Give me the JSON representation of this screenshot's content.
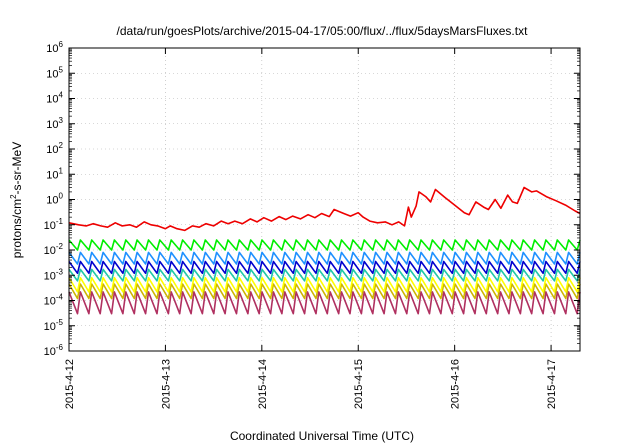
{
  "chart_data": {
    "type": "line",
    "title": "/data/run/goesPlots/archive/2015-04-17/05:00/flux/../flux/5daysMarsFluxes.txt",
    "xlabel": "Coordinated Universal Time (UTC)",
    "ylabel_parts": {
      "pre": "protons/cm",
      "sup": "2",
      "post": "-s-sr-MeV"
    },
    "yscale": "log",
    "ylim": [
      1e-06,
      1000000.0
    ],
    "y_ticks": [
      {
        "base": "10",
        "exp": "-6",
        "value": 1e-06
      },
      {
        "base": "10",
        "exp": "-5",
        "value": 1e-05
      },
      {
        "base": "10",
        "exp": "-4",
        "value": 0.0001
      },
      {
        "base": "10",
        "exp": "-3",
        "value": 0.001
      },
      {
        "base": "10",
        "exp": "-2",
        "value": 0.01
      },
      {
        "base": "10",
        "exp": "-1",
        "value": 0.1
      },
      {
        "base": "10",
        "exp": "0",
        "value": 1
      },
      {
        "base": "10",
        "exp": "1",
        "value": 10
      },
      {
        "base": "10",
        "exp": "2",
        "value": 100
      },
      {
        "base": "10",
        "exp": "3",
        "value": 1000
      },
      {
        "base": "10",
        "exp": "4",
        "value": 10000
      },
      {
        "base": "10",
        "exp": "5",
        "value": 100000
      },
      {
        "base": "10",
        "exp": "6",
        "value": 1000000
      }
    ],
    "xlim_days": [
      0,
      5.3
    ],
    "x_ticks": [
      {
        "label": "2015-4-12",
        "day": 0
      },
      {
        "label": "2015-4-13",
        "day": 1
      },
      {
        "label": "2015-4-14",
        "day": 2
      },
      {
        "label": "2015-4-15",
        "day": 3
      },
      {
        "label": "2015-4-16",
        "day": 4
      },
      {
        "label": "2015-4-17",
        "day": 5
      }
    ],
    "grid": true,
    "legend": "none",
    "series": [
      {
        "color": "#ee0000",
        "points": [
          [
            0.0,
            0.12
          ],
          [
            0.1,
            0.1
          ],
          [
            0.18,
            0.09
          ],
          [
            0.25,
            0.11
          ],
          [
            0.33,
            0.09
          ],
          [
            0.4,
            0.08
          ],
          [
            0.48,
            0.12
          ],
          [
            0.55,
            0.09
          ],
          [
            0.63,
            0.1
          ],
          [
            0.7,
            0.08
          ],
          [
            0.78,
            0.13
          ],
          [
            0.85,
            0.1
          ],
          [
            0.92,
            0.09
          ],
          [
            1.0,
            0.07
          ],
          [
            1.05,
            0.09
          ],
          [
            1.12,
            0.07
          ],
          [
            1.2,
            0.06
          ],
          [
            1.28,
            0.09
          ],
          [
            1.35,
            0.08
          ],
          [
            1.42,
            0.11
          ],
          [
            1.5,
            0.09
          ],
          [
            1.58,
            0.14
          ],
          [
            1.65,
            0.11
          ],
          [
            1.72,
            0.14
          ],
          [
            1.8,
            0.11
          ],
          [
            1.88,
            0.17
          ],
          [
            1.95,
            0.13
          ],
          [
            2.02,
            0.19
          ],
          [
            2.1,
            0.14
          ],
          [
            2.18,
            0.21
          ],
          [
            2.25,
            0.16
          ],
          [
            2.32,
            0.22
          ],
          [
            2.4,
            0.17
          ],
          [
            2.48,
            0.25
          ],
          [
            2.55,
            0.19
          ],
          [
            2.62,
            0.28
          ],
          [
            2.7,
            0.21
          ],
          [
            2.75,
            0.4
          ],
          [
            2.85,
            0.28
          ],
          [
            2.92,
            0.22
          ],
          [
            3.0,
            0.3
          ],
          [
            3.05,
            0.2
          ],
          [
            3.12,
            0.14
          ],
          [
            3.2,
            0.12
          ],
          [
            3.28,
            0.13
          ],
          [
            3.35,
            0.1
          ],
          [
            3.42,
            0.13
          ],
          [
            3.48,
            0.09
          ],
          [
            3.52,
            0.5
          ],
          [
            3.55,
            0.2
          ],
          [
            3.6,
            0.55
          ],
          [
            3.63,
            2.0
          ],
          [
            3.7,
            1.3
          ],
          [
            3.75,
            0.8
          ],
          [
            3.8,
            2.5
          ],
          [
            3.9,
            1.2
          ],
          [
            4.0,
            0.6
          ],
          [
            4.1,
            0.3
          ],
          [
            4.15,
            0.25
          ],
          [
            4.22,
            0.8
          ],
          [
            4.3,
            0.5
          ],
          [
            4.35,
            0.4
          ],
          [
            4.42,
            1.0
          ],
          [
            4.48,
            0.45
          ],
          [
            4.55,
            1.5
          ],
          [
            4.6,
            0.8
          ],
          [
            4.65,
            0.7
          ],
          [
            4.72,
            3.0
          ],
          [
            4.8,
            2.0
          ],
          [
            4.85,
            2.2
          ],
          [
            4.95,
            1.3
          ],
          [
            5.05,
            0.9
          ],
          [
            5.15,
            0.6
          ],
          [
            5.25,
            0.35
          ],
          [
            5.3,
            0.28
          ]
        ]
      },
      {
        "color": "#00ee00",
        "cycles": 45,
        "high": 0.025,
        "low": 0.01
      },
      {
        "color": "#1e90ff",
        "cycles": 45,
        "high": 0.008,
        "low": 0.0028
      },
      {
        "color": "#0000cd",
        "cycles": 45,
        "high": 0.0035,
        "low": 0.0012
      },
      {
        "color": "#20c8a8",
        "cycles": 45,
        "high": 0.0017,
        "low": 0.0006
      },
      {
        "color": "#ffff00",
        "cycles": 45,
        "high": 0.0008,
        "low": 0.00022
      },
      {
        "color": "#cdb500",
        "cycles": 45,
        "high": 0.00045,
        "low": 0.00012
      },
      {
        "color": "#b03060",
        "cycles": 45,
        "high": 0.00022,
        "low": 3e-05
      }
    ]
  }
}
